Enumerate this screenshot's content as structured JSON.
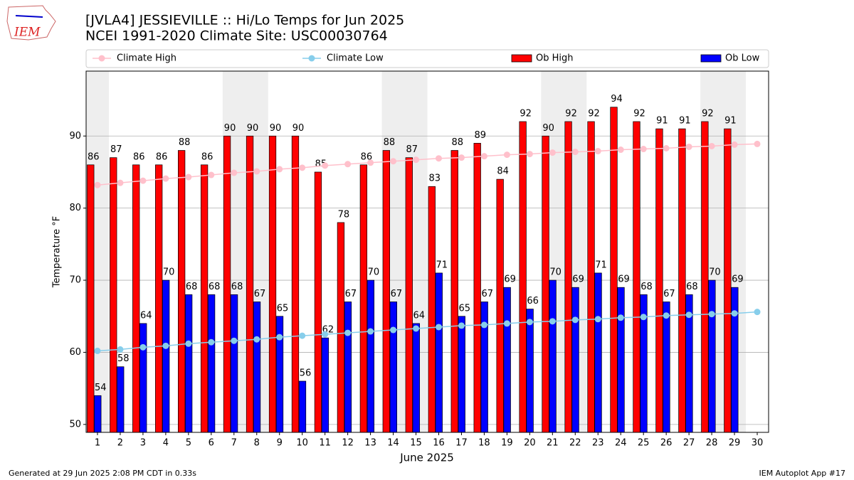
{
  "chart_data": {
    "type": "bar",
    "title": "[JVLA4] JESSIEVILLE :: Hi/Lo Temps for Jun 2025",
    "subtitle": "NCEI 1991-2020 Climate Site: USC00030764",
    "logo_text": "IEM",
    "y_label": "Temperature °F",
    "x_label": "June 2025",
    "footer_left": "Generated at 29 Jun 2025 2:08 PM CDT in 0.33s",
    "footer_right": "IEM Autoplot App #17",
    "x": [
      1,
      2,
      3,
      4,
      5,
      6,
      7,
      8,
      9,
      10,
      11,
      12,
      13,
      14,
      15,
      16,
      17,
      18,
      19,
      20,
      21,
      22,
      23,
      24,
      25,
      26,
      27,
      28,
      29,
      30
    ],
    "xlim": [
      0.5,
      30.5
    ],
    "xticks": [
      1,
      2,
      3,
      4,
      5,
      6,
      7,
      8,
      9,
      10,
      11,
      12,
      13,
      14,
      15,
      16,
      17,
      18,
      19,
      20,
      21,
      22,
      23,
      24,
      25,
      26,
      27,
      28,
      29,
      30
    ],
    "ylim": [
      48.9,
      99
    ],
    "yticks": [
      50,
      60,
      70,
      80,
      90
    ],
    "grid": true,
    "series": [
      {
        "name": "Climate High",
        "style": "line",
        "color": "#ffc0cb",
        "values": [
          83.2,
          83.5,
          83.8,
          84.1,
          84.3,
          84.6,
          84.9,
          85.1,
          85.4,
          85.6,
          85.9,
          86.1,
          86.3,
          86.5,
          86.7,
          86.9,
          87.0,
          87.2,
          87.4,
          87.5,
          87.7,
          87.8,
          87.9,
          88.1,
          88.2,
          88.3,
          88.5,
          88.6,
          88.8,
          88.9
        ]
      },
      {
        "name": "Climate Low",
        "style": "line",
        "color": "#87ceeb",
        "values": [
          60.2,
          60.4,
          60.7,
          60.9,
          61.2,
          61.4,
          61.6,
          61.8,
          62.1,
          62.3,
          62.5,
          62.7,
          62.9,
          63.1,
          63.3,
          63.5,
          63.7,
          63.8,
          64.0,
          64.2,
          64.3,
          64.5,
          64.6,
          64.8,
          64.9,
          65.1,
          65.2,
          65.3,
          65.4,
          65.6
        ]
      },
      {
        "name": "Ob High",
        "style": "bar",
        "color": "#ff0000",
        "values": [
          86,
          87,
          86,
          86,
          88,
          86,
          90,
          90,
          90,
          90,
          85,
          78,
          86,
          88,
          87,
          83,
          88,
          89,
          84,
          92,
          90,
          92,
          92,
          94,
          92,
          91,
          91,
          92,
          91,
          null
        ]
      },
      {
        "name": "Ob Low",
        "style": "bar",
        "color": "#0000ff",
        "values": [
          54,
          58,
          64,
          70,
          68,
          68,
          68,
          67,
          65,
          56,
          62,
          67,
          70,
          67,
          64,
          71,
          65,
          67,
          69,
          66,
          70,
          69,
          71,
          69,
          68,
          67,
          68,
          70,
          69,
          null
        ]
      }
    ]
  }
}
